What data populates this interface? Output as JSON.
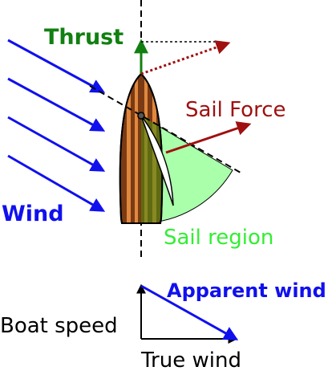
{
  "labels": {
    "thrust": "Thrust",
    "sail_force": "Sail Force",
    "wind": "Wind",
    "sail_region": "Sail region",
    "apparent_wind": "Apparent wind",
    "boat_speed": "Boat speed",
    "true_wind": "True wind"
  },
  "colors": {
    "thrust": "#118011",
    "sail_force": "#a01010",
    "wind": "#1010ee",
    "sail_region": "#33ee33",
    "sail_region_fill": "#aaffaa",
    "hull_wood": "#7a3a14",
    "hull_stripe": "#e0883e",
    "hull_shadow": "#4d6b10",
    "sail": "#ffffff"
  },
  "icons": [
    "sailboat-hull-icon",
    "sail-icon",
    "arrow-icon"
  ]
}
